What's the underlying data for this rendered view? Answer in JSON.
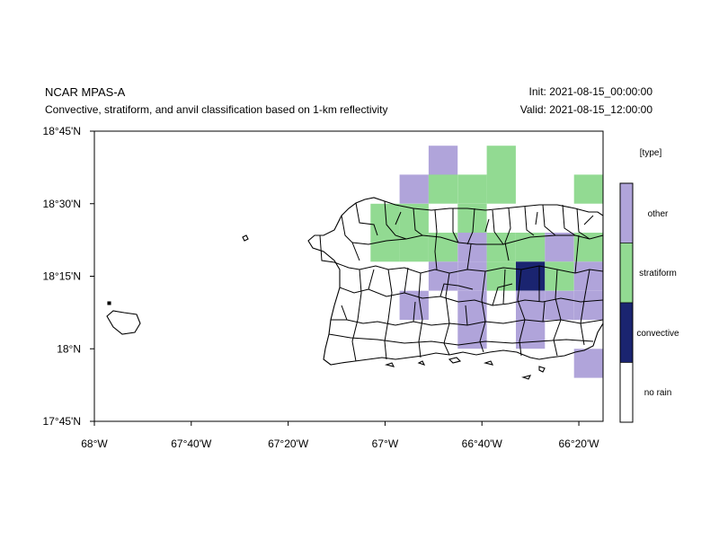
{
  "header": {
    "title": "NCAR MPAS-A",
    "subtitle": "Convective, stratiform, and anvil classification based on 1-km reflectivity",
    "init": "Init: 2021-08-15_00:00:00",
    "valid": "Valid: 2021-08-15_12:00:00"
  },
  "map": {
    "lon_range": [
      -68.0,
      -66.25
    ],
    "lat_range": [
      17.75,
      18.75
    ],
    "lon_ticks": [
      {
        "value": -68.0,
        "label": "68°W"
      },
      {
        "value": -67.6667,
        "label": "67°40'W"
      },
      {
        "value": -67.3333,
        "label": "67°20'W"
      },
      {
        "value": -67.0,
        "label": "67°W"
      },
      {
        "value": -66.6667,
        "label": "66°40'W"
      },
      {
        "value": -66.3333,
        "label": "66°20'W"
      }
    ],
    "lat_ticks": [
      {
        "value": 18.75,
        "label": "18°45'N"
      },
      {
        "value": 18.5,
        "label": "18°30'N"
      },
      {
        "value": 18.25,
        "label": "18°15'N"
      },
      {
        "value": 18.0,
        "label": "18°N"
      },
      {
        "value": 17.75,
        "label": "17°45'N"
      }
    ],
    "cell_deg": 0.1,
    "cells": [
      {
        "lon": -66.8,
        "lat": 18.65,
        "type": "other"
      },
      {
        "lon": -66.6,
        "lat": 18.65,
        "type": "stratiform"
      },
      {
        "lon": -66.9,
        "lat": 18.55,
        "type": "other"
      },
      {
        "lon": -66.8,
        "lat": 18.55,
        "type": "stratiform"
      },
      {
        "lon": -66.7,
        "lat": 18.55,
        "type": "stratiform"
      },
      {
        "lon": -66.6,
        "lat": 18.55,
        "type": "stratiform"
      },
      {
        "lon": -66.3,
        "lat": 18.55,
        "type": "stratiform"
      },
      {
        "lon": -67.0,
        "lat": 18.45,
        "type": "stratiform"
      },
      {
        "lon": -66.9,
        "lat": 18.45,
        "type": "stratiform"
      },
      {
        "lon": -66.7,
        "lat": 18.45,
        "type": "stratiform"
      },
      {
        "lon": -67.0,
        "lat": 18.35,
        "type": "stratiform"
      },
      {
        "lon": -66.9,
        "lat": 18.35,
        "type": "stratiform"
      },
      {
        "lon": -66.8,
        "lat": 18.35,
        "type": "stratiform"
      },
      {
        "lon": -66.7,
        "lat": 18.35,
        "type": "other"
      },
      {
        "lon": -66.6,
        "lat": 18.35,
        "type": "stratiform"
      },
      {
        "lon": -66.5,
        "lat": 18.35,
        "type": "stratiform"
      },
      {
        "lon": -66.4,
        "lat": 18.35,
        "type": "other"
      },
      {
        "lon": -66.3,
        "lat": 18.35,
        "type": "stratiform"
      },
      {
        "lon": -66.2,
        "lat": 18.35,
        "type": "stratiform"
      },
      {
        "lon": -66.8,
        "lat": 18.25,
        "type": "other"
      },
      {
        "lon": -66.7,
        "lat": 18.25,
        "type": "other"
      },
      {
        "lon": -66.6,
        "lat": 18.25,
        "type": "stratiform"
      },
      {
        "lon": -66.5,
        "lat": 18.25,
        "type": "convective"
      },
      {
        "lon": -66.4,
        "lat": 18.25,
        "type": "stratiform"
      },
      {
        "lon": -66.3,
        "lat": 18.25,
        "type": "other"
      },
      {
        "lon": -66.2,
        "lat": 18.25,
        "type": "other"
      },
      {
        "lon": -66.1,
        "lat": 18.25,
        "type": "stratiform"
      },
      {
        "lon": -66.9,
        "lat": 18.15,
        "type": "other"
      },
      {
        "lon": -66.7,
        "lat": 18.15,
        "type": "other"
      },
      {
        "lon": -66.5,
        "lat": 18.15,
        "type": "other"
      },
      {
        "lon": -66.4,
        "lat": 18.15,
        "type": "other"
      },
      {
        "lon": -66.3,
        "lat": 18.15,
        "type": "other"
      },
      {
        "lon": -66.2,
        "lat": 18.15,
        "type": "other"
      },
      {
        "lon": -66.1,
        "lat": 18.15,
        "type": "stratiform"
      },
      {
        "lon": -66.0,
        "lat": 18.15,
        "type": "stratiform"
      },
      {
        "lon": -66.7,
        "lat": 18.05,
        "type": "other"
      },
      {
        "lon": -66.5,
        "lat": 18.05,
        "type": "other"
      },
      {
        "lon": -66.1,
        "lat": 18.05,
        "type": "stratiform"
      },
      {
        "lon": -66.0,
        "lat": 18.05,
        "type": "stratiform"
      },
      {
        "lon": -66.3,
        "lat": 17.95,
        "type": "other"
      },
      {
        "lon": -66.2,
        "lat": 17.95,
        "type": "other"
      },
      {
        "lon": -66.0,
        "lat": 17.85,
        "type": "other"
      },
      {
        "lon": -66.0,
        "lat": 18.75,
        "type": "stratiform"
      }
    ]
  },
  "legend": {
    "title": "[type]",
    "items": [
      {
        "label": "other",
        "color": "#b0a4da"
      },
      {
        "label": "stratiform",
        "color": "#92da92"
      },
      {
        "label": "convective",
        "color": "#1a2470"
      },
      {
        "label": "no rain",
        "color": "#ffffff"
      }
    ]
  },
  "colors": {
    "other": "#b0a4da",
    "stratiform": "#92da92",
    "convective": "#1a2470",
    "no_rain": "#ffffff"
  }
}
